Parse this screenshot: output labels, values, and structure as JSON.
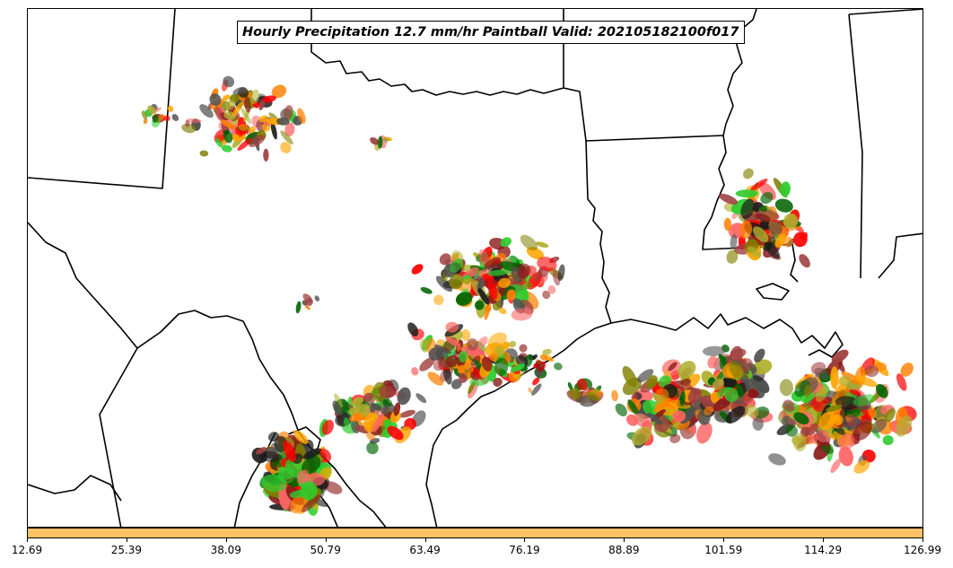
{
  "title": "Hourly Precipitation 12.7 mm/hr Paintball Valid: 202105182100f017",
  "colorbar": {
    "color": "#ffc266",
    "ticks": [
      "12.69",
      "25.39",
      "38.09",
      "50.79",
      "63.49",
      "76.19",
      "88.89",
      "101.59",
      "114.29",
      "126.99"
    ]
  },
  "map": {
    "region": "Texas / Louisiana / Gulf Coast",
    "member_colors": [
      "#ff0000",
      "#ff6666",
      "#ff8000",
      "#ffa500",
      "#b0b030",
      "#808000",
      "#2ecc2e",
      "#006400",
      "#8b1a1a",
      "#a04040",
      "#1a1a1a",
      "#505050"
    ]
  }
}
